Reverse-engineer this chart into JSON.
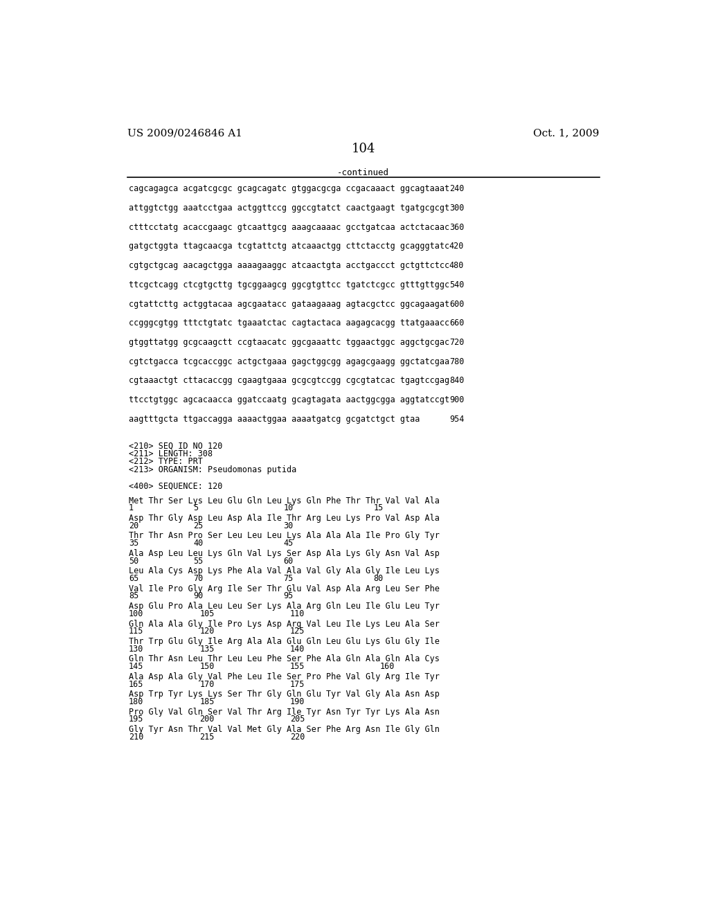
{
  "header_left": "US 2009/0246846 A1",
  "header_right": "Oct. 1, 2009",
  "page_number": "104",
  "continued_label": "-continued",
  "background_color": "#ffffff",
  "text_color": "#000000",
  "dna_lines": [
    [
      "cagcagagca acgatcgcgc gcagcagatc gtggacgcga ccgacaaact ggcagtaaat",
      "240"
    ],
    [
      "attggtctgg aaatcctgaa actggttccg ggccgtatct caactgaagt tgatgcgcgt",
      "300"
    ],
    [
      "ctttcctatg acaccgaagc gtcaattgcg aaagcaaaac gcctgatcaa actctacaac",
      "360"
    ],
    [
      "gatgctggta ttagcaacga tcgtattctg atcaaactgg cttctacctg gcagggtatc",
      "420"
    ],
    [
      "cgtgctgcag aacagctgga aaaagaaggc atcaactgta acctgaccct gctgttctcc",
      "480"
    ],
    [
      "ttcgctcagg ctcgtgcttg tgcggaagcg ggcgtgttcc tgatctcgcc gtttgttggc",
      "540"
    ],
    [
      "cgtattcttg actggtacaa agcgaatacc gataagaaag agtacgctcc ggcagaagat",
      "600"
    ],
    [
      "ccgggcgtgg tttctgtatc tgaaatctac cagtactaca aagagcacgg ttatgaaacc",
      "660"
    ],
    [
      "gtggttatgg gcgcaagctt ccgtaacatc ggcgaaattc tggaactggc aggctgcgac",
      "720"
    ],
    [
      "cgtctgacca tcgcaccggc actgctgaaa gagctggcgg agagcgaagg ggctatcgaa",
      "780"
    ],
    [
      "cgtaaactgt cttacaccgg cgaagtgaaa gcgcgtccgg cgcgtatcac tgagtccgag",
      "840"
    ],
    [
      "ttcctgtggc agcacaacca ggatccaatg gcagtagata aactggcgga aggtatccgt",
      "900"
    ],
    [
      "aagtttgcta ttgaccagga aaaactggaa aaaatgatcg gcgatctgct gtaa",
      "954"
    ]
  ],
  "seq_info_lines": [
    "<210> SEQ ID NO 120",
    "<211> LENGTH: 308",
    "<212> TYPE: PRT",
    "<213> ORGANISM: Pseudomonas putida",
    "",
    "<400> SEQUENCE: 120"
  ],
  "protein_data": [
    {
      "seq": "Met Thr Ser Lys Leu Glu Gln Leu Lys Gln Phe Thr Thr Val Val Ala",
      "nums": [
        [
          "1",
          0
        ],
        [
          "5",
          120
        ],
        [
          "10",
          288
        ],
        [
          "15",
          456
        ]
      ]
    },
    {
      "seq": "Asp Thr Gly Asp Leu Asp Ala Ile Thr Arg Leu Lys Pro Val Asp Ala",
      "nums": [
        [
          "20",
          0
        ],
        [
          "25",
          120
        ],
        [
          "30",
          288
        ]
      ]
    },
    {
      "seq": "Thr Thr Asn Pro Ser Leu Leu Leu Lys Ala Ala Ala Ile Pro Gly Tyr",
      "nums": [
        [
          "35",
          0
        ],
        [
          "40",
          120
        ],
        [
          "45",
          288
        ]
      ]
    },
    {
      "seq": "Ala Asp Leu Leu Lys Gln Val Lys Ser Asp Ala Lys Gly Asn Val Asp",
      "nums": [
        [
          "50",
          0
        ],
        [
          "55",
          120
        ],
        [
          "60",
          288
        ]
      ]
    },
    {
      "seq": "Leu Ala Cys Asp Lys Phe Ala Val Ala Val Gly Ala Gly Ile Leu Lys",
      "nums": [
        [
          "65",
          0
        ],
        [
          "70",
          120
        ],
        [
          "75",
          288
        ],
        [
          "80",
          456
        ]
      ]
    },
    {
      "seq": "Val Ile Pro Gly Arg Ile Ser Thr Glu Val Asp Ala Arg Leu Ser Phe",
      "nums": [
        [
          "85",
          0
        ],
        [
          "90",
          120
        ],
        [
          "95",
          288
        ]
      ]
    },
    {
      "seq": "Asp Glu Pro Ala Leu Leu Ser Lys Ala Arg Gln Leu Ile Glu Leu Tyr",
      "nums": [
        [
          "100",
          0
        ],
        [
          "105",
          132
        ],
        [
          "110",
          300
        ]
      ]
    },
    {
      "seq": "Gln Ala Ala Gly Ile Pro Lys Asp Arg Val Leu Ile Lys Leu Ala Ser",
      "nums": [
        [
          "115",
          0
        ],
        [
          "120",
          132
        ],
        [
          "125",
          300
        ]
      ]
    },
    {
      "seq": "Thr Trp Glu Gly Ile Arg Ala Ala Glu Gln Leu Glu Lys Glu Gly Ile",
      "nums": [
        [
          "130",
          0
        ],
        [
          "135",
          132
        ],
        [
          "140",
          300
        ]
      ]
    },
    {
      "seq": "Gln Thr Asn Leu Thr Leu Leu Phe Ser Phe Ala Gln Ala Gln Ala Cys",
      "nums": [
        [
          "145",
          0
        ],
        [
          "150",
          132
        ],
        [
          "155",
          300
        ],
        [
          "160",
          468
        ]
      ]
    },
    {
      "seq": "Ala Asp Ala Gly Val Phe Leu Ile Ser Pro Phe Val Gly Arg Ile Tyr",
      "nums": [
        [
          "165",
          0
        ],
        [
          "170",
          132
        ],
        [
          "175",
          300
        ]
      ]
    },
    {
      "seq": "Asp Trp Tyr Lys Lys Ser Thr Gly Gln Glu Tyr Val Gly Ala Asn Asp",
      "nums": [
        [
          "180",
          0
        ],
        [
          "185",
          132
        ],
        [
          "190",
          300
        ]
      ]
    },
    {
      "seq": "Pro Gly Val Gln Ser Val Thr Arg Ile Tyr Asn Tyr Tyr Lys Ala Asn",
      "nums": [
        [
          "195",
          0
        ],
        [
          "200",
          132
        ],
        [
          "205",
          300
        ]
      ]
    },
    {
      "seq": "Gly Tyr Asn Thr Val Val Met Gly Ala Ser Phe Arg Asn Ile Gly Gln",
      "nums": [
        [
          "210",
          0
        ],
        [
          "215",
          132
        ],
        [
          "220",
          300
        ]
      ]
    }
  ]
}
